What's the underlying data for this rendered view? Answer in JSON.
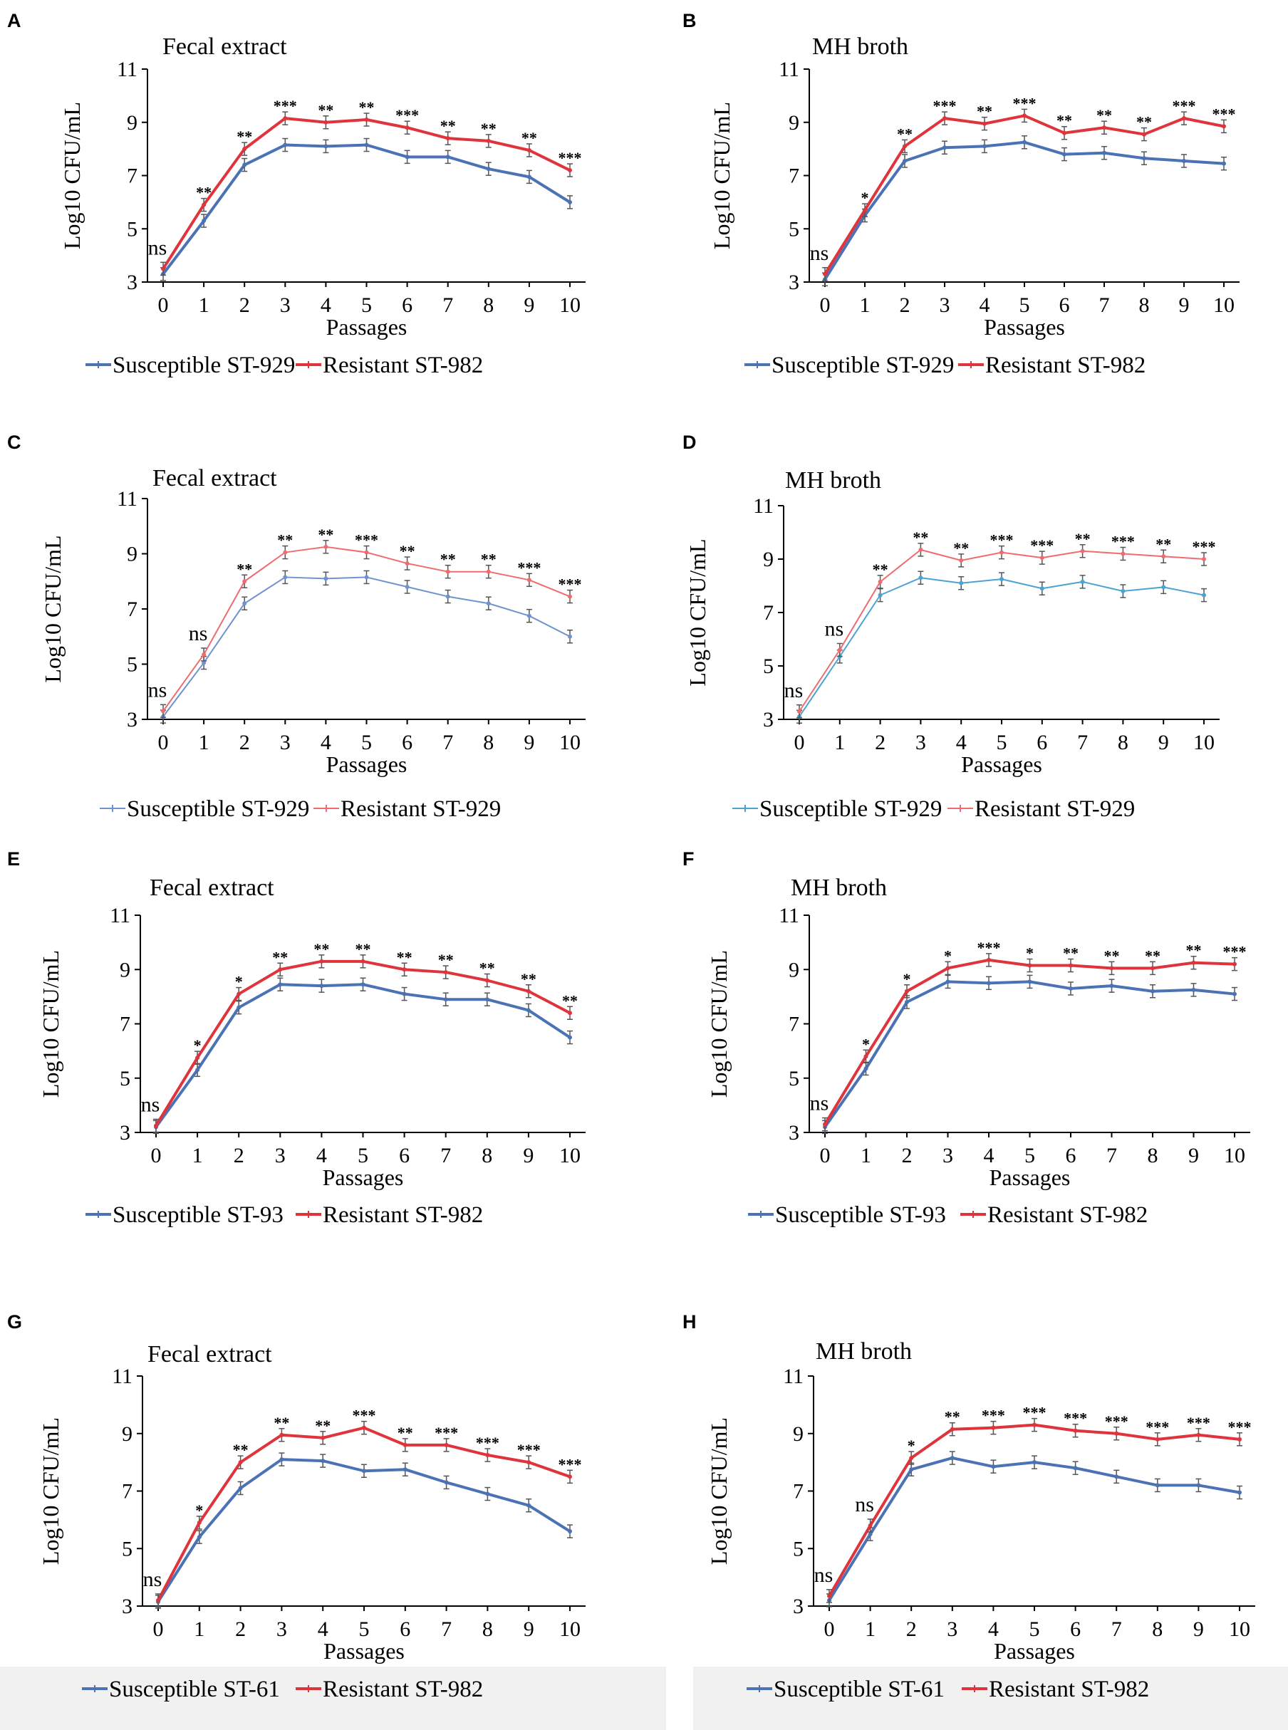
{
  "colors": {
    "susceptible": "#4a72b5",
    "resistant": "#e0343d",
    "susceptible_light": "#6f93cf",
    "resistant_light": "#ef6b70",
    "susceptible_cyan": "#4aa3d3"
  },
  "chart_data": [
    {
      "panel": "A",
      "type": "line",
      "title": "Fecal extract",
      "xlabel": "Passages",
      "ylabel": "Log10 CFU/mL",
      "categories": [
        0,
        1,
        2,
        3,
        4,
        5,
        6,
        7,
        8,
        9,
        10
      ],
      "ylim": [
        3,
        11
      ],
      "yticks": [
        3,
        5,
        7,
        9,
        11
      ],
      "series": [
        {
          "name": "Susceptible ST-929",
          "values": [
            3.3,
            5.3,
            7.4,
            8.15,
            8.1,
            8.15,
            7.7,
            7.7,
            7.25,
            6.95,
            6.0
          ]
        },
        {
          "name": "Resistant ST-982",
          "values": [
            3.5,
            5.9,
            8.0,
            9.15,
            9.0,
            9.1,
            8.8,
            8.4,
            8.3,
            7.95,
            7.2
          ]
        }
      ],
      "significance": [
        "ns",
        "**",
        "**",
        "***",
        "**",
        "**",
        "***",
        "**",
        "**",
        "**",
        "***"
      ]
    },
    {
      "panel": "B",
      "type": "line",
      "title": "MH broth",
      "xlabel": "Passages",
      "ylabel": "Log10 CFU/mL",
      "categories": [
        0,
        1,
        2,
        3,
        4,
        5,
        6,
        7,
        8,
        9,
        10
      ],
      "ylim": [
        3,
        11
      ],
      "yticks": [
        3,
        5,
        7,
        9,
        11
      ],
      "series": [
        {
          "name": "Susceptible ST-929",
          "values": [
            3.1,
            5.5,
            7.55,
            8.05,
            8.1,
            8.25,
            7.8,
            7.85,
            7.65,
            7.55,
            7.45
          ]
        },
        {
          "name": "Resistant ST-982",
          "values": [
            3.3,
            5.7,
            8.1,
            9.15,
            8.95,
            9.25,
            8.6,
            8.8,
            8.55,
            9.15,
            8.85
          ]
        }
      ],
      "significance": [
        "ns",
        "*",
        "**",
        "***",
        "**",
        "***",
        "**",
        "**",
        "**",
        "***",
        "***"
      ]
    },
    {
      "panel": "C",
      "type": "line",
      "title": "Fecal extract",
      "xlabel": "Passages",
      "ylabel": "Log10 CFU/mL",
      "categories": [
        0,
        1,
        2,
        3,
        4,
        5,
        6,
        7,
        8,
        9,
        10
      ],
      "ylim": [
        3,
        11
      ],
      "yticks": [
        3,
        5,
        7,
        9,
        11
      ],
      "series": [
        {
          "name": "Susceptible ST-929",
          "values": [
            3.1,
            5.05,
            7.2,
            8.15,
            8.1,
            8.15,
            7.8,
            7.45,
            7.2,
            6.75,
            6.0
          ]
        },
        {
          "name": "Resistant ST-929",
          "values": [
            3.3,
            5.35,
            8.0,
            9.05,
            9.25,
            9.05,
            8.65,
            8.35,
            8.35,
            8.05,
            7.45
          ]
        }
      ],
      "significance": [
        "ns",
        "ns",
        "**",
        "**",
        "**",
        "***",
        "**",
        "**",
        "**",
        "***",
        "***"
      ]
    },
    {
      "panel": "D",
      "type": "line",
      "title": "MH broth",
      "xlabel": "Passages",
      "ylabel": "Log10 CFU/mL",
      "categories": [
        0,
        1,
        2,
        3,
        4,
        5,
        6,
        7,
        8,
        9,
        10
      ],
      "ylim": [
        3,
        11
      ],
      "yticks": [
        3,
        5,
        7,
        9,
        11
      ],
      "series": [
        {
          "name": "Susceptible ST-929",
          "values": [
            3.1,
            5.35,
            7.65,
            8.3,
            8.1,
            8.25,
            7.9,
            8.15,
            7.8,
            7.95,
            7.65
          ]
        },
        {
          "name": "Resistant ST-929",
          "values": [
            3.3,
            5.6,
            8.15,
            9.35,
            8.95,
            9.25,
            9.05,
            9.3,
            9.2,
            9.1,
            9.0
          ]
        }
      ],
      "significance": [
        "ns",
        "ns",
        "**",
        "**",
        "**",
        "***",
        "***",
        "**",
        "***",
        "**",
        "***"
      ]
    },
    {
      "panel": "E",
      "type": "line",
      "title": "Fecal extract",
      "xlabel": "Passages",
      "ylabel": "Log10 CFU/mL",
      "categories": [
        0,
        1,
        2,
        3,
        4,
        5,
        6,
        7,
        8,
        9,
        10
      ],
      "ylim": [
        3,
        11
      ],
      "yticks": [
        3,
        5,
        7,
        9,
        11
      ],
      "series": [
        {
          "name": "Susceptible ST-93",
          "values": [
            3.2,
            5.3,
            7.6,
            8.45,
            8.4,
            8.45,
            8.1,
            7.9,
            7.9,
            7.5,
            6.5
          ]
        },
        {
          "name": "Resistant ST-982",
          "values": [
            3.25,
            5.75,
            8.1,
            9.0,
            9.3,
            9.3,
            9.0,
            8.9,
            8.6,
            8.2,
            7.4
          ]
        }
      ],
      "significance": [
        "ns",
        "*",
        "*",
        "**",
        "**",
        "**",
        "**",
        "**",
        "**",
        "**",
        "**"
      ]
    },
    {
      "panel": "F",
      "type": "line",
      "title": "MH broth",
      "xlabel": "Passages",
      "ylabel": "Log10 CFU/mL",
      "categories": [
        0,
        1,
        2,
        3,
        4,
        5,
        6,
        7,
        8,
        9,
        10
      ],
      "ylim": [
        3,
        11
      ],
      "yticks": [
        3,
        5,
        7,
        9,
        11
      ],
      "series": [
        {
          "name": "Susceptible ST-93",
          "values": [
            3.2,
            5.35,
            7.8,
            8.55,
            8.5,
            8.55,
            8.3,
            8.4,
            8.2,
            8.25,
            8.1
          ]
        },
        {
          "name": "Resistant ST-982",
          "values": [
            3.3,
            5.8,
            8.2,
            9.05,
            9.35,
            9.15,
            9.15,
            9.05,
            9.05,
            9.25,
            9.2
          ]
        }
      ],
      "significance": [
        "ns",
        "*",
        "*",
        "*",
        "***",
        "*",
        "**",
        "**",
        "**",
        "**",
        "***"
      ]
    },
    {
      "panel": "G",
      "type": "line",
      "title": "Fecal extract",
      "xlabel": "Passages",
      "ylabel": "Log10 CFU/mL",
      "categories": [
        0,
        1,
        2,
        3,
        4,
        5,
        6,
        7,
        8,
        9,
        10
      ],
      "ylim": [
        3,
        11
      ],
      "yticks": [
        3,
        5,
        7,
        9,
        11
      ],
      "series": [
        {
          "name": "Susceptible ST-61",
          "values": [
            3.15,
            5.4,
            7.1,
            8.1,
            8.05,
            7.7,
            7.75,
            7.3,
            6.9,
            6.5,
            5.6
          ]
        },
        {
          "name": "Resistant ST-982",
          "values": [
            3.2,
            5.9,
            8.0,
            8.95,
            8.85,
            9.2,
            8.6,
            8.6,
            8.25,
            8.0,
            7.5
          ]
        }
      ],
      "significance": [
        "ns",
        "*",
        "**",
        "**",
        "**",
        "***",
        "**",
        "***",
        "***",
        "***",
        "***"
      ]
    },
    {
      "panel": "H",
      "type": "line",
      "title": "MH broth",
      "xlabel": "Passages",
      "ylabel": "Log10 CFU/mL",
      "categories": [
        0,
        1,
        2,
        3,
        4,
        5,
        6,
        7,
        8,
        9,
        10
      ],
      "ylim": [
        3,
        11
      ],
      "yticks": [
        3,
        5,
        7,
        9,
        11
      ],
      "series": [
        {
          "name": "Susceptible ST-61",
          "values": [
            3.2,
            5.5,
            7.75,
            8.15,
            7.85,
            8.0,
            7.8,
            7.5,
            7.2,
            7.2,
            6.95
          ]
        },
        {
          "name": "Resistant ST-982",
          "values": [
            3.35,
            5.8,
            8.15,
            9.15,
            9.2,
            9.3,
            9.1,
            9.0,
            8.8,
            8.95,
            8.8
          ]
        }
      ],
      "significance": [
        "ns",
        "ns",
        "*",
        "**",
        "***",
        "***",
        "***",
        "***",
        "***",
        "***",
        "***"
      ]
    }
  ]
}
